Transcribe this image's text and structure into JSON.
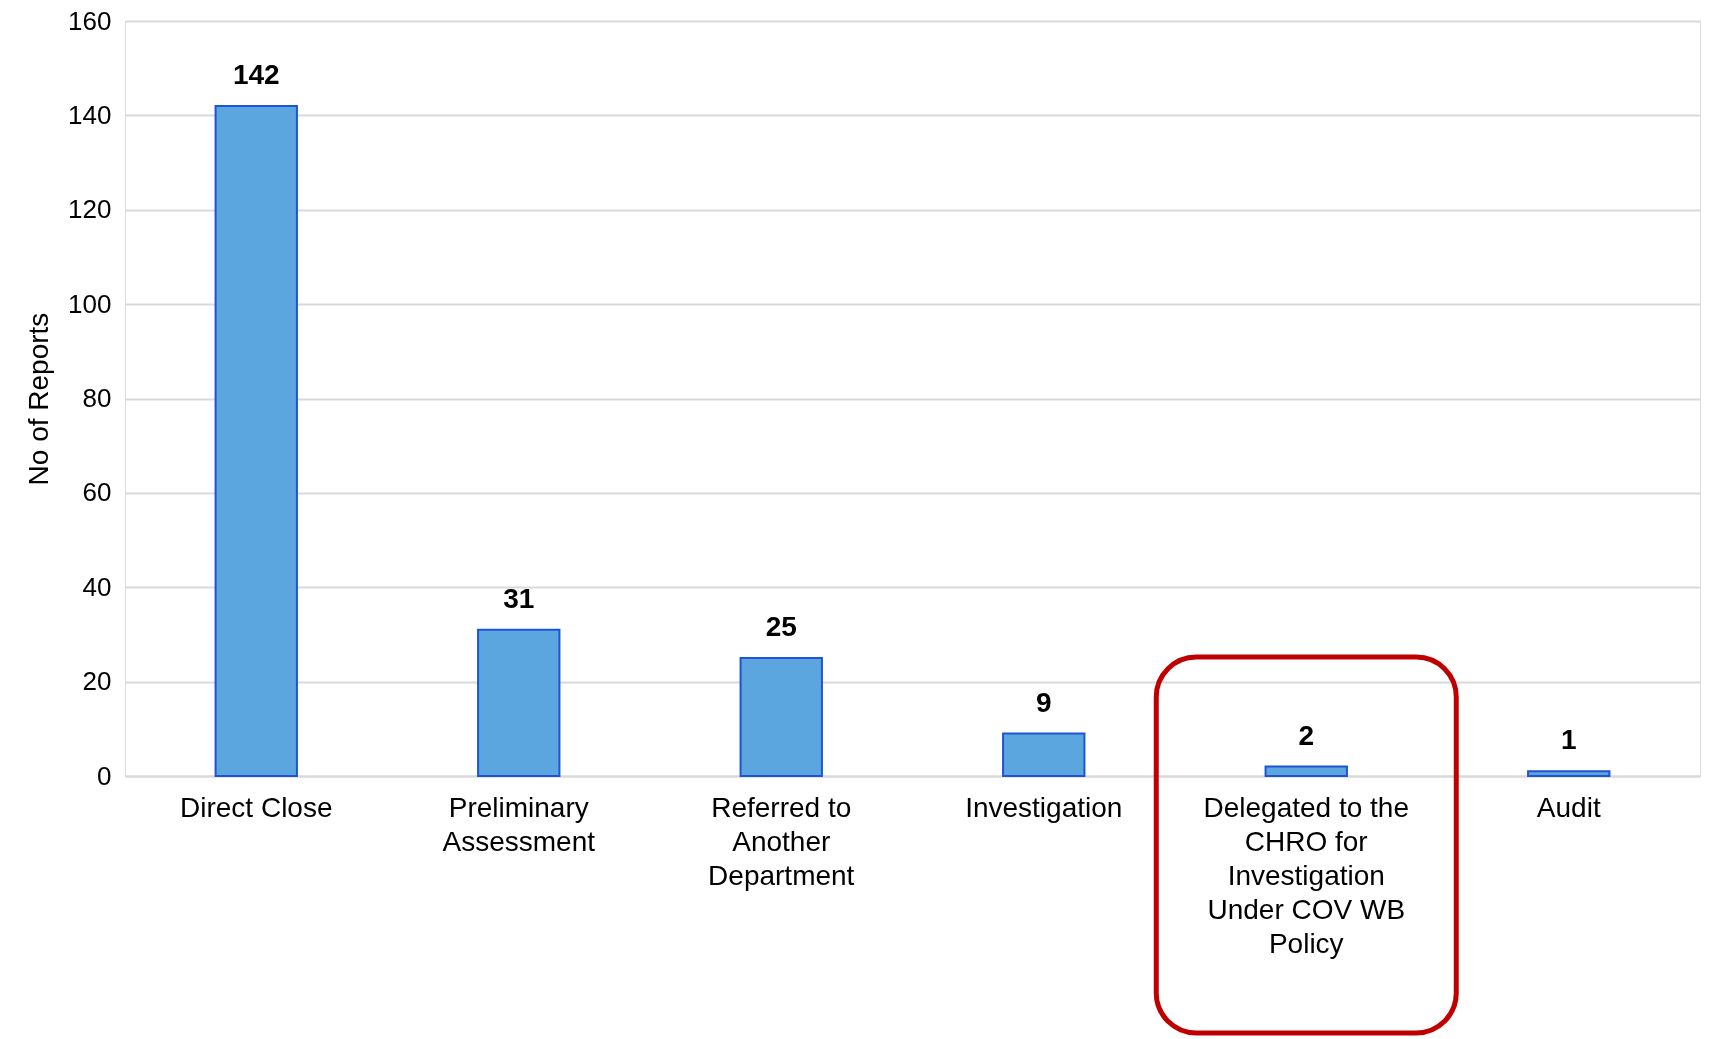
{
  "chart_data": {
    "type": "bar",
    "ylabel": "No of Reports",
    "categories": [
      "Direct Close",
      "Preliminary Assessment",
      "Referred to Another Department",
      "Investigation",
      "Delegated to the CHRO for Investigation Under COV WB Policy",
      "Audit"
    ],
    "values": [
      142,
      31,
      25,
      9,
      2,
      1
    ],
    "color": "#5ba6de",
    "ylim": [
      0,
      160
    ],
    "yticks": [
      0,
      20,
      40,
      60,
      80,
      100,
      120,
      140,
      160
    ],
    "grid": "y",
    "data_labels": true
  }
}
